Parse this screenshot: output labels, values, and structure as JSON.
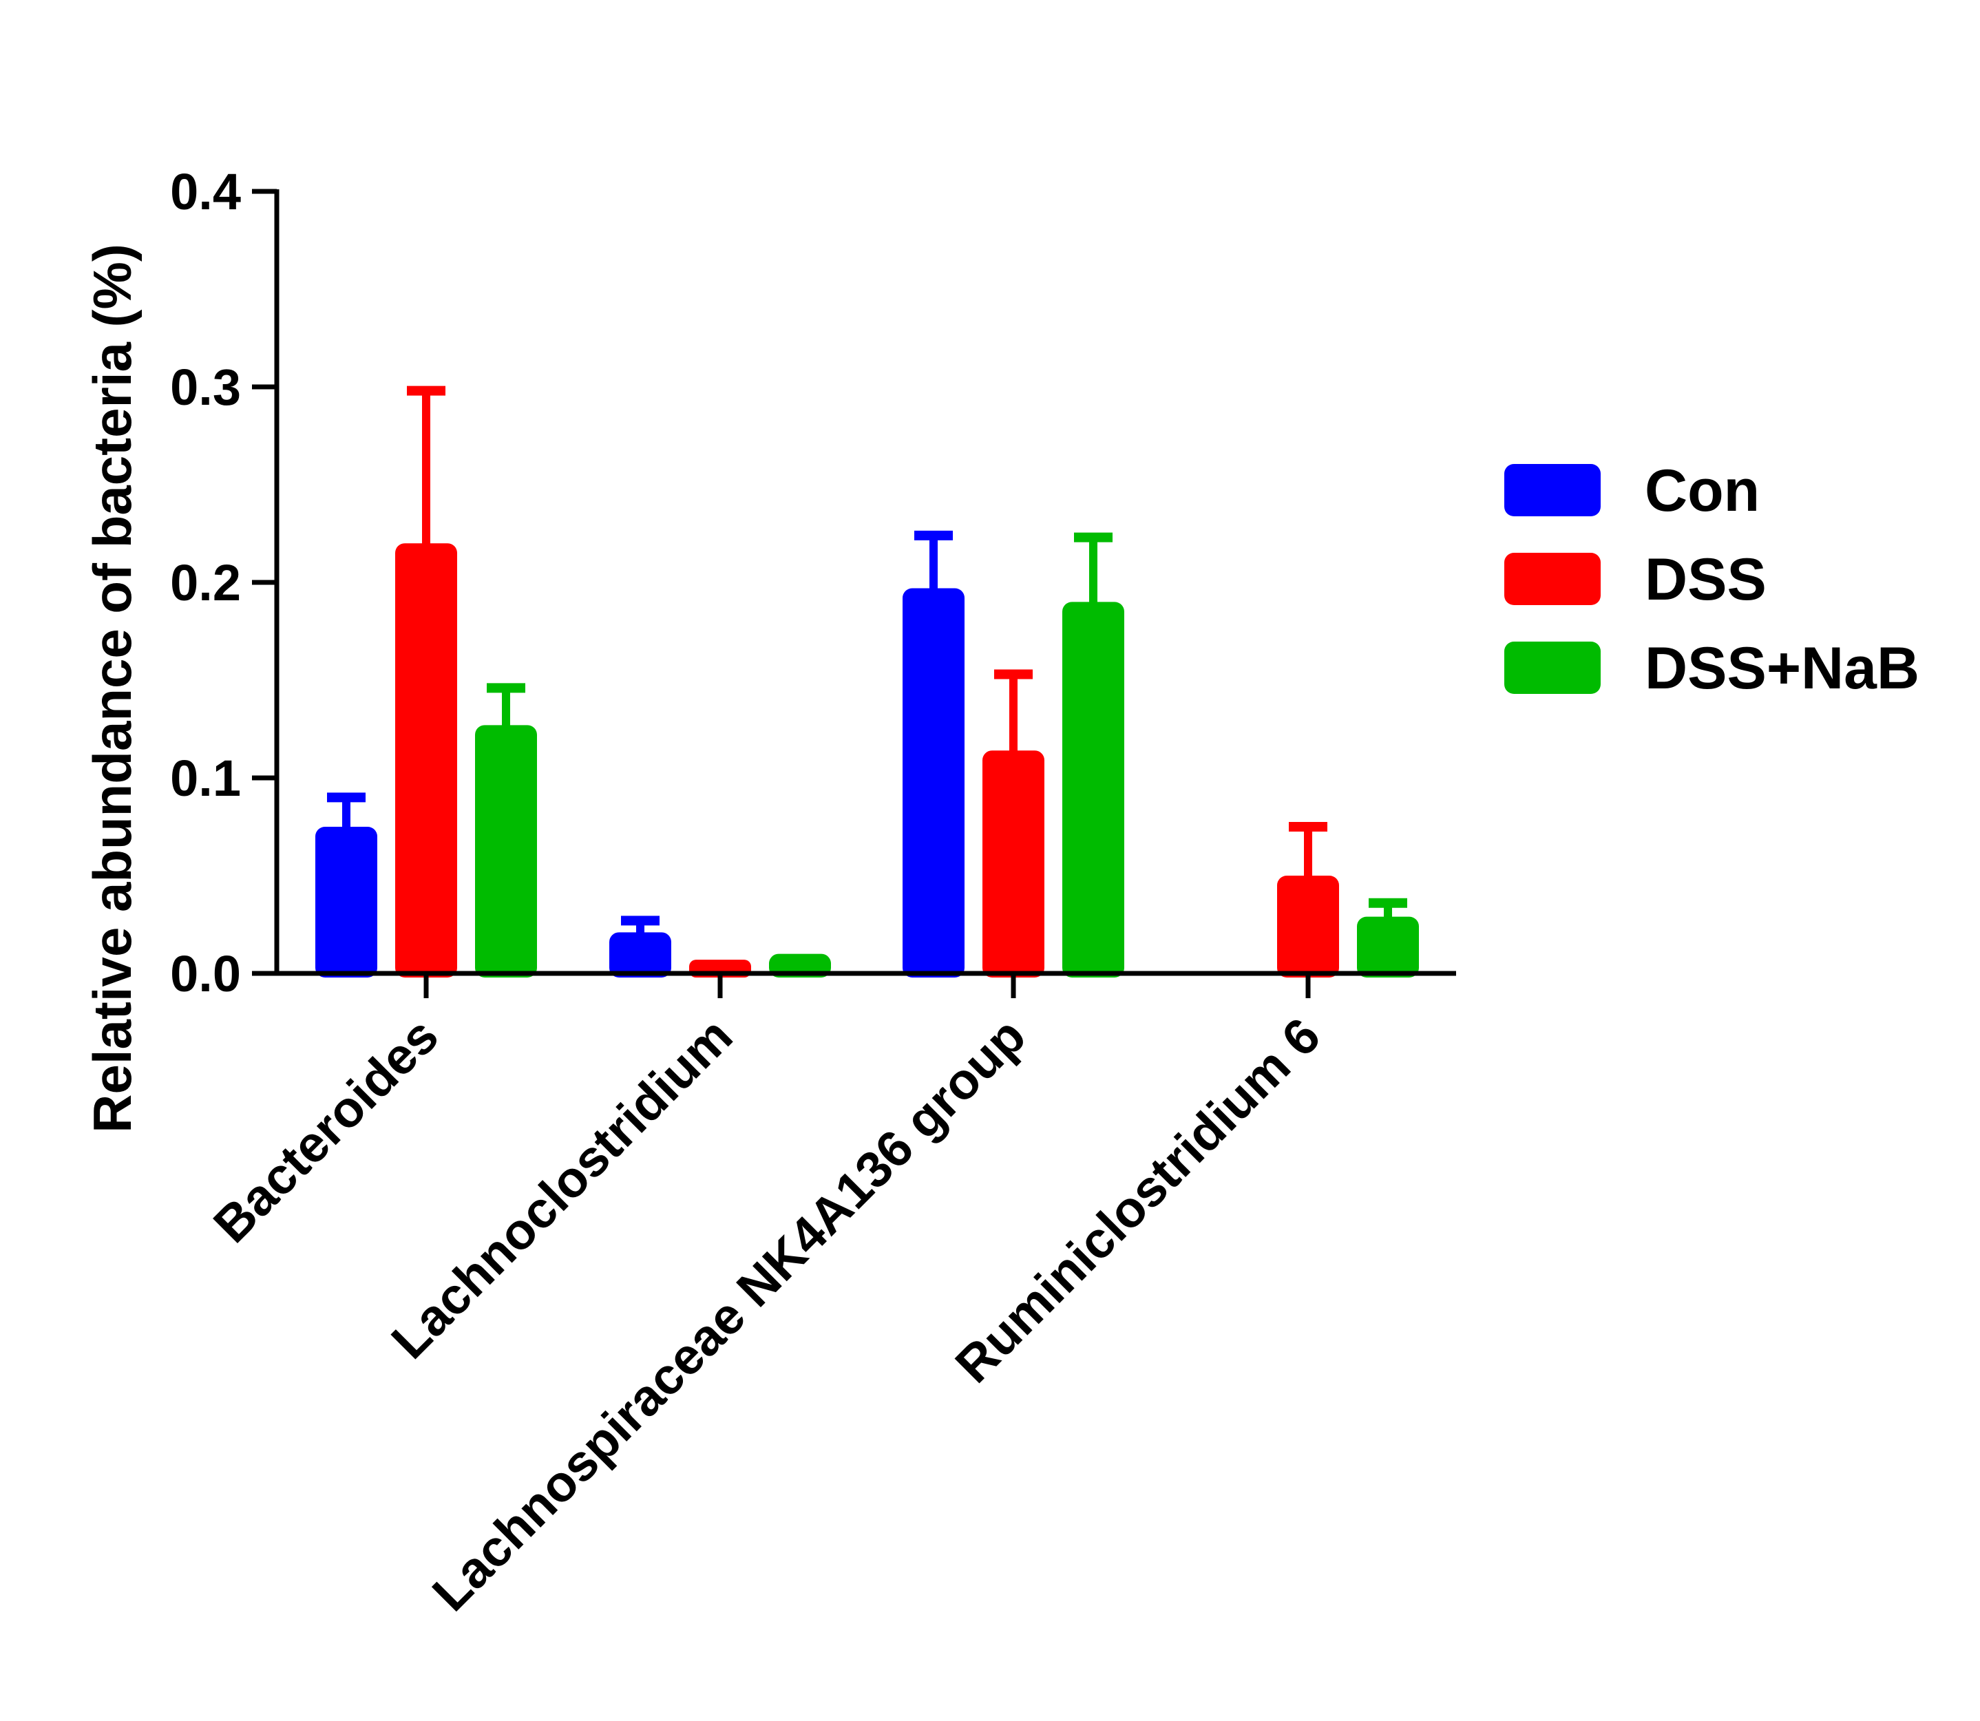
{
  "chart_data": {
    "type": "bar",
    "title": "",
    "xlabel": "",
    "ylabel": "Relative abundance of bacteria (%)",
    "ylim": [
      0,
      0.4
    ],
    "yticks": [
      0.0,
      0.1,
      0.2,
      0.3,
      0.4
    ],
    "ytick_labels": [
      "0.0",
      "0.1",
      "0.2",
      "0.3",
      "0.4"
    ],
    "categories": [
      "Bacteroides",
      "Lachnoclostridium",
      "Lachnospiraceae NK4A136 group",
      "Ruminiclostridium 6"
    ],
    "series": [
      {
        "name": "Con",
        "color": "#0000ff",
        "values": [
          0.075,
          0.021,
          0.197,
          0.0
        ],
        "errors": [
          0.015,
          0.006,
          0.027,
          0.0
        ]
      },
      {
        "name": "DSS",
        "color": "#ff0000",
        "values": [
          0.22,
          0.007,
          0.114,
          0.05
        ],
        "errors": [
          0.078,
          0.0,
          0.039,
          0.025
        ]
      },
      {
        "name": "DSS+NaB",
        "color": "#00bb00",
        "values": [
          0.127,
          0.01,
          0.19,
          0.029
        ],
        "errors": [
          0.019,
          0.0,
          0.033,
          0.007
        ]
      }
    ],
    "legend": {
      "position": "right",
      "entries": [
        "Con",
        "DSS",
        "DSS+NaB"
      ]
    },
    "grid": false
  }
}
